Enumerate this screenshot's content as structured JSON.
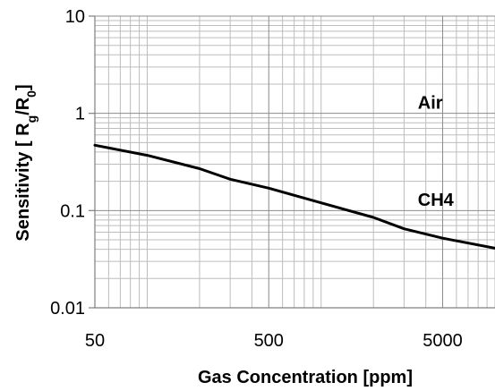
{
  "chart_data": {
    "type": "line",
    "xlabel": "Gas Concentration [ppm]",
    "ylabel_parts": {
      "pre": "Sensitivity [ R",
      "sub1": "g",
      "mid": "/R",
      "sub2": "0",
      "post": "]"
    },
    "x_scale": "log",
    "y_scale": "log",
    "xlim": [
      50,
      10000
    ],
    "ylim": [
      0.01,
      10
    ],
    "x_ticks": [
      50,
      500,
      5000
    ],
    "x_tick_labels": [
      "50",
      "500",
      "5000"
    ],
    "y_ticks": [
      0.01,
      0.1,
      1,
      10
    ],
    "y_tick_labels": [
      "0.01",
      "0.1",
      "1",
      "10"
    ],
    "grid": true,
    "series": [
      {
        "name": "CH4",
        "color": "#000000",
        "x": [
          50,
          100,
          200,
          300,
          500,
          1000,
          2000,
          3000,
          5000,
          10000
        ],
        "y": [
          0.47,
          0.37,
          0.27,
          0.21,
          0.17,
          0.12,
          0.085,
          0.065,
          0.052,
          0.041
        ]
      }
    ],
    "annotations": [
      {
        "text": "Air",
        "x": 3600,
        "y": 1.3
      },
      {
        "text": "CH4",
        "x": 3600,
        "y": 0.13
      }
    ]
  }
}
